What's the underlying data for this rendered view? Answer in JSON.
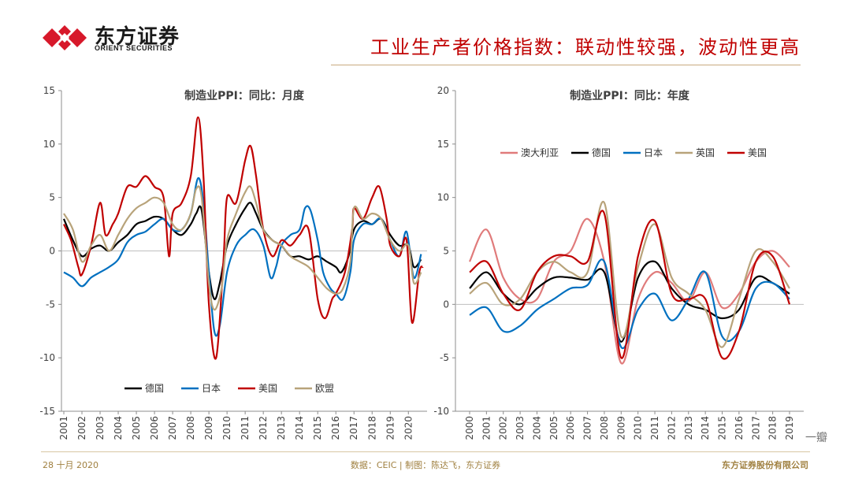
{
  "brand": {
    "name_cn": "东方证券",
    "name_en": "ORIENT SECURITIES",
    "logo_color": "#d7182a"
  },
  "slide_title": "工业生产者价格指数：联动性较强，波动性更高",
  "footer": {
    "date": "28 十月 2020",
    "source": "数据：CEIC | 制图：陈达飞，东方证券",
    "company": "东方证券股份有限公司"
  },
  "watermark": "一瓣",
  "chart_data": [
    {
      "type": "line",
      "title": "制造业PPI：同比：月度",
      "ylim": [
        -15,
        15
      ],
      "yticks": [
        15,
        10,
        5,
        0,
        -5,
        -10,
        -15
      ],
      "xticks": [
        "2001",
        "2002",
        "2003",
        "2004",
        "2005",
        "2006",
        "2007",
        "2008",
        "2009",
        "2010",
        "2011",
        "2012",
        "2013",
        "2014",
        "2015",
        "2016",
        "2017",
        "2018",
        "2019",
        "2020"
      ],
      "x_range": [
        2001,
        2020.9
      ],
      "legend_position": "bottom",
      "series": [
        {
          "name": "德国",
          "color": "#000000",
          "points": [
            [
              2001,
              3.0
            ],
            [
              2001.5,
              1.0
            ],
            [
              2002,
              -0.5
            ],
            [
              2002.5,
              0.2
            ],
            [
              2003,
              0.5
            ],
            [
              2003.5,
              0.0
            ],
            [
              2004,
              0.8
            ],
            [
              2004.5,
              1.5
            ],
            [
              2005,
              2.5
            ],
            [
              2005.5,
              2.8
            ],
            [
              2006,
              3.2
            ],
            [
              2006.5,
              3.0
            ],
            [
              2007,
              2.0
            ],
            [
              2007.5,
              1.5
            ],
            [
              2008,
              2.5
            ],
            [
              2008.3,
              3.5
            ],
            [
              2008.6,
              3.8
            ],
            [
              2009,
              -2.0
            ],
            [
              2009.3,
              -4.5
            ],
            [
              2009.6,
              -3.0
            ],
            [
              2010,
              0.5
            ],
            [
              2010.5,
              2.5
            ],
            [
              2011,
              4.0
            ],
            [
              2011.3,
              4.5
            ],
            [
              2011.6,
              3.5
            ],
            [
              2012,
              2.0
            ],
            [
              2012.5,
              1.0
            ],
            [
              2013,
              0.5
            ],
            [
              2013.5,
              -0.5
            ],
            [
              2014,
              -0.5
            ],
            [
              2014.5,
              -0.8
            ],
            [
              2015,
              -0.5
            ],
            [
              2015.5,
              -1.0
            ],
            [
              2016,
              -1.5
            ],
            [
              2016.3,
              -2.0
            ],
            [
              2016.7,
              -0.5
            ],
            [
              2017,
              2.0
            ],
            [
              2017.5,
              2.8
            ],
            [
              2018,
              2.5
            ],
            [
              2018.5,
              3.0
            ],
            [
              2019,
              1.5
            ],
            [
              2019.5,
              0.5
            ],
            [
              2020,
              0.5
            ],
            [
              2020.3,
              -1.5
            ],
            [
              2020.7,
              -0.8
            ]
          ]
        },
        {
          "name": "日本",
          "color": "#0070c0",
          "points": [
            [
              2001,
              -2.0
            ],
            [
              2001.5,
              -2.5
            ],
            [
              2002,
              -3.3
            ],
            [
              2002.5,
              -2.5
            ],
            [
              2003,
              -2.0
            ],
            [
              2003.5,
              -1.5
            ],
            [
              2004,
              -0.8
            ],
            [
              2004.5,
              0.8
            ],
            [
              2005,
              1.5
            ],
            [
              2005.5,
              1.8
            ],
            [
              2006,
              2.5
            ],
            [
              2006.5,
              3.0
            ],
            [
              2007,
              2.0
            ],
            [
              2007.5,
              2.0
            ],
            [
              2008,
              3.5
            ],
            [
              2008.4,
              6.8
            ],
            [
              2008.7,
              4.5
            ],
            [
              2009,
              -2.0
            ],
            [
              2009.3,
              -7.5
            ],
            [
              2009.6,
              -7.0
            ],
            [
              2010,
              -2.0
            ],
            [
              2010.5,
              0.5
            ],
            [
              2011,
              1.5
            ],
            [
              2011.5,
              2.0
            ],
            [
              2012,
              0.5
            ],
            [
              2012.4,
              -2.5
            ],
            [
              2012.7,
              -1.5
            ],
            [
              2013,
              0.5
            ],
            [
              2013.5,
              1.5
            ],
            [
              2014,
              2.0
            ],
            [
              2014.3,
              4.0
            ],
            [
              2014.6,
              3.8
            ],
            [
              2015,
              1.0
            ],
            [
              2015.3,
              -2.0
            ],
            [
              2015.7,
              -3.5
            ],
            [
              2016,
              -4.0
            ],
            [
              2016.4,
              -4.5
            ],
            [
              2016.8,
              -2.0
            ],
            [
              2017,
              1.0
            ],
            [
              2017.5,
              2.5
            ],
            [
              2018,
              2.5
            ],
            [
              2018.5,
              3.0
            ],
            [
              2019,
              1.0
            ],
            [
              2019.5,
              -0.5
            ],
            [
              2019.9,
              1.8
            ],
            [
              2020.3,
              -2.5
            ],
            [
              2020.7,
              -0.3
            ]
          ]
        },
        {
          "name": "美国",
          "color": "#c00000",
          "points": [
            [
              2001,
              2.5
            ],
            [
              2001.4,
              1.0
            ],
            [
              2001.8,
              -1.5
            ],
            [
              2002,
              -2.2
            ],
            [
              2002.5,
              0.5
            ],
            [
              2003,
              4.5
            ],
            [
              2003.3,
              1.5
            ],
            [
              2003.7,
              2.5
            ],
            [
              2004,
              3.5
            ],
            [
              2004.5,
              6.0
            ],
            [
              2005,
              6.0
            ],
            [
              2005.5,
              7.0
            ],
            [
              2006,
              6.0
            ],
            [
              2006.5,
              5.0
            ],
            [
              2006.8,
              -0.5
            ],
            [
              2007,
              3.5
            ],
            [
              2007.5,
              4.5
            ],
            [
              2008,
              7.0
            ],
            [
              2008.4,
              12.5
            ],
            [
              2008.7,
              7.0
            ],
            [
              2009,
              -5.0
            ],
            [
              2009.4,
              -10.0
            ],
            [
              2009.8,
              -1.0
            ],
            [
              2010,
              5.0
            ],
            [
              2010.5,
              4.5
            ],
            [
              2011,
              8.5
            ],
            [
              2011.3,
              9.8
            ],
            [
              2011.6,
              7.0
            ],
            [
              2012,
              2.0
            ],
            [
              2012.5,
              -0.5
            ],
            [
              2013,
              1.0
            ],
            [
              2013.5,
              0.5
            ],
            [
              2014,
              1.5
            ],
            [
              2014.5,
              2.0
            ],
            [
              2015,
              -4.5
            ],
            [
              2015.4,
              -6.3
            ],
            [
              2015.8,
              -4.5
            ],
            [
              2016,
              -4.0
            ],
            [
              2016.5,
              -2.0
            ],
            [
              2016.9,
              2.0
            ],
            [
              2017,
              4.0
            ],
            [
              2017.5,
              3.0
            ],
            [
              2018,
              5.0
            ],
            [
              2018.4,
              6.0
            ],
            [
              2018.8,
              3.0
            ],
            [
              2019,
              0.5
            ],
            [
              2019.5,
              -0.5
            ],
            [
              2019.9,
              1.0
            ],
            [
              2020.2,
              -6.7
            ],
            [
              2020.6,
              -2.0
            ],
            [
              2020.8,
              -1.5
            ]
          ]
        },
        {
          "name": "欧盟",
          "color": "#b8a37a",
          "points": [
            [
              2001,
              3.5
            ],
            [
              2001.5,
              2.0
            ],
            [
              2002,
              -1.0
            ],
            [
              2002.5,
              0.5
            ],
            [
              2003,
              1.5
            ],
            [
              2003.5,
              0.0
            ],
            [
              2004,
              1.5
            ],
            [
              2004.5,
              3.0
            ],
            [
              2005,
              4.0
            ],
            [
              2005.5,
              4.5
            ],
            [
              2006,
              5.0
            ],
            [
              2006.5,
              4.5
            ],
            [
              2007,
              2.5
            ],
            [
              2007.5,
              2.0
            ],
            [
              2008,
              3.5
            ],
            [
              2008.3,
              5.8
            ],
            [
              2008.6,
              5.0
            ],
            [
              2009,
              -3.0
            ],
            [
              2009.3,
              -5.5
            ],
            [
              2009.7,
              -3.5
            ],
            [
              2010,
              1.0
            ],
            [
              2010.5,
              3.5
            ],
            [
              2011,
              5.5
            ],
            [
              2011.3,
              6.0
            ],
            [
              2011.6,
              4.5
            ],
            [
              2012,
              2.0
            ],
            [
              2012.5,
              1.0
            ],
            [
              2013,
              0.5
            ],
            [
              2013.5,
              -0.5
            ],
            [
              2014,
              -1.0
            ],
            [
              2014.5,
              -1.5
            ],
            [
              2015,
              -2.5
            ],
            [
              2015.5,
              -3.5
            ],
            [
              2016,
              -4.0
            ],
            [
              2016.4,
              -3.5
            ],
            [
              2016.8,
              -1.0
            ],
            [
              2017,
              4.0
            ],
            [
              2017.5,
              3.0
            ],
            [
              2018,
              3.5
            ],
            [
              2018.5,
              3.0
            ],
            [
              2019,
              1.0
            ],
            [
              2019.5,
              0.0
            ],
            [
              2020,
              0.5
            ],
            [
              2020.3,
              -3.0
            ],
            [
              2020.7,
              -2.0
            ]
          ]
        }
      ]
    },
    {
      "type": "line",
      "title": "制造业PPI：同比：年度",
      "ylim": [
        -10,
        20
      ],
      "yticks": [
        20,
        15,
        10,
        5,
        0,
        -5,
        -10
      ],
      "xticks": [
        "2000",
        "2001",
        "2002",
        "2003",
        "2004",
        "2005",
        "2006",
        "2007",
        "2008",
        "2009",
        "2010",
        "2011",
        "2012",
        "2013",
        "2014",
        "2015",
        "2016",
        "2017",
        "2018",
        "2019"
      ],
      "legend_position": "top",
      "series": [
        {
          "name": "澳大利亚",
          "color": "#e07b7b",
          "values": [
            4.0,
            7.0,
            2.5,
            0.5,
            0.5,
            4.0,
            5.0,
            8.0,
            4.0,
            -5.5,
            0.5,
            3.0,
            2.0,
            0.3,
            3.0,
            -0.3,
            1.0,
            4.0,
            5.0,
            3.5
          ]
        },
        {
          "name": "德国",
          "color": "#000000",
          "values": [
            1.5,
            3.0,
            1.0,
            0.0,
            1.5,
            2.5,
            2.5,
            2.3,
            3.0,
            -3.5,
            2.5,
            4.0,
            1.5,
            0.0,
            -0.5,
            -1.3,
            -0.5,
            2.5,
            2.0,
            1.0
          ]
        },
        {
          "name": "日本",
          "color": "#0070c0",
          "values": [
            -1.0,
            -0.3,
            -2.5,
            -2.0,
            -0.5,
            0.5,
            1.5,
            1.8,
            4.0,
            -4.0,
            -0.5,
            1.0,
            -1.5,
            0.5,
            3.0,
            -3.0,
            -2.5,
            1.5,
            2.0,
            0.5
          ]
        },
        {
          "name": "英国",
          "color": "#b8a37a",
          "values": [
            1.0,
            2.0,
            0.0,
            0.5,
            3.0,
            4.0,
            3.0,
            3.0,
            9.5,
            -3.0,
            3.5,
            7.5,
            2.5,
            1.0,
            -0.5,
            -4.0,
            0.5,
            5.0,
            4.0,
            1.5
          ]
        },
        {
          "name": "美国",
          "color": "#c00000",
          "values": [
            3.0,
            4.0,
            1.0,
            -0.5,
            3.0,
            4.5,
            4.5,
            4.0,
            8.5,
            -5.0,
            4.5,
            7.8,
            1.0,
            0.5,
            0.5,
            -5.0,
            -2.5,
            4.0,
            4.5,
            0.0
          ]
        }
      ]
    }
  ]
}
